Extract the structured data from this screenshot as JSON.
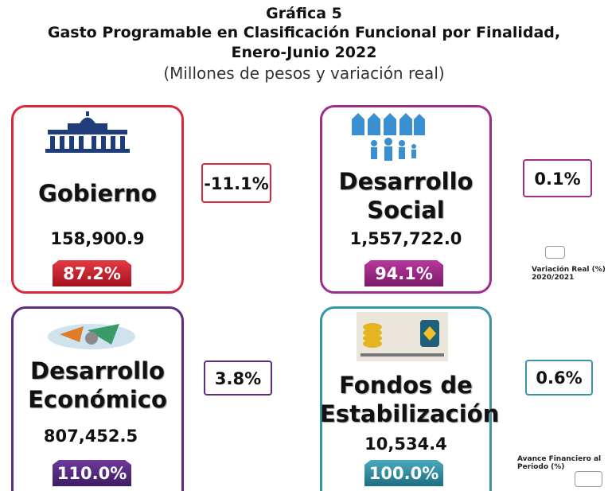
{
  "header": {
    "title": "Gráfica 5",
    "subtitle_lines": [
      "Gasto Programable en Clasificación Funcional por Finalidad,",
      "Enero-Junio 2022"
    ],
    "units": "(Millones de pesos y variación real)"
  },
  "cards": [
    {
      "name": "Gobierno",
      "amount": "158,900.9",
      "progress": "87.2%",
      "variation": "-11.1%"
    },
    {
      "name": "Desarrollo Social",
      "amount": "1,557,722.0",
      "progress": "94.1%",
      "variation": "0.1%"
    },
    {
      "name": "Desarrollo Económico",
      "amount": "807,452.5",
      "progress": "110.0%",
      "variation": "3.8%"
    },
    {
      "name": "Fondos de Estabilización",
      "amount": "10,534.4",
      "progress": "100.0%",
      "variation": "0.6%"
    }
  ],
  "legend": {
    "variation": "Variación Real (%) 2020/2021",
    "progress": "Avance Financiero al Periodo (%)"
  }
}
